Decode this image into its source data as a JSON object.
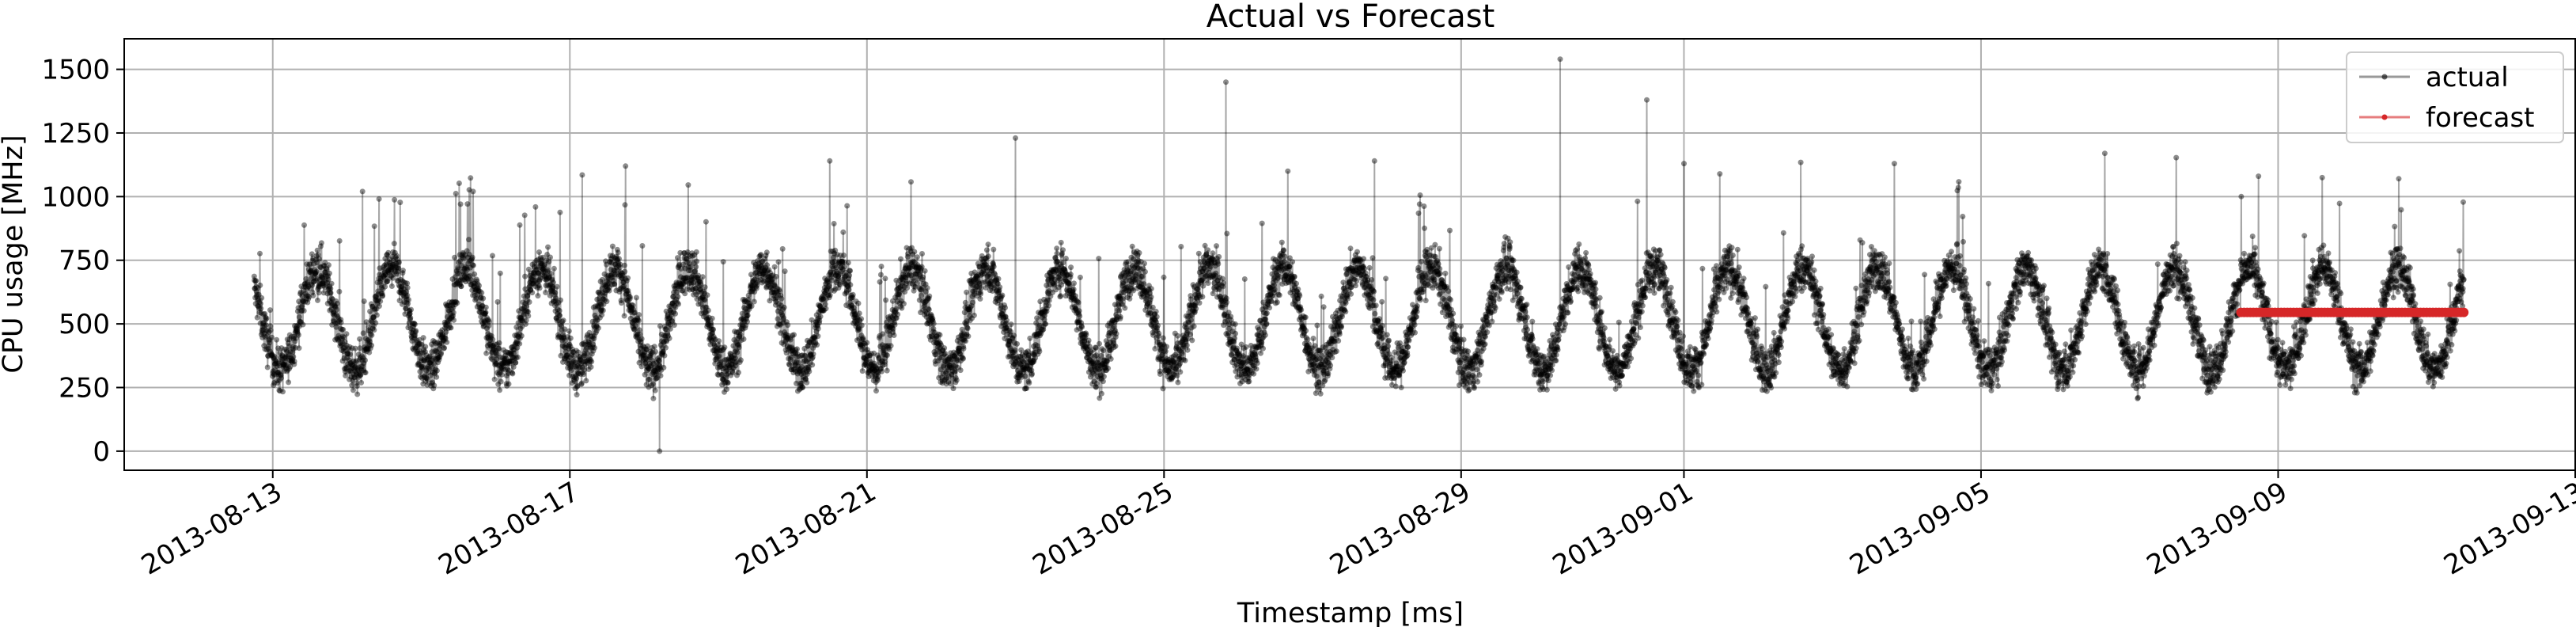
{
  "chart_data": {
    "type": "line",
    "title": "Actual vs Forecast",
    "xlabel": "Timestamp [ms]",
    "ylabel": "CPU usage [MHz]",
    "x_type": "date",
    "xlim": [
      "2013-08-11",
      "2013-09-13"
    ],
    "ylim": [
      -75,
      1620
    ],
    "x_ticks": [
      "2013-08-13",
      "2013-08-17",
      "2013-08-21",
      "2013-08-25",
      "2013-08-29",
      "2013-09-01",
      "2013-09-05",
      "2013-09-09",
      "2013-09-13"
    ],
    "y_ticks": [
      0,
      250,
      500,
      750,
      1000,
      1250,
      1500
    ],
    "grid": true,
    "legend": {
      "placement": "top-right",
      "entries": [
        "actual",
        "forecast"
      ]
    },
    "series": [
      {
        "name": "actual",
        "color": "#000000",
        "x_start": "2013-08-12 18:00",
        "x_end": "2013-09-11 12:00",
        "sample_interval_minutes": 5,
        "baseline": 520,
        "daily_amplitude": 200,
        "noise": 55,
        "approx_peaks": [
          {
            "x": "2013-08-14 05:00",
            "y": 1020
          },
          {
            "x": "2013-08-17 04:00",
            "y": 1085
          },
          {
            "x": "2013-08-17 18:00",
            "y": 1120
          },
          {
            "x": "2013-08-18 05:00",
            "y": 0
          },
          {
            "x": "2013-08-20 12:00",
            "y": 1140
          },
          {
            "x": "2013-08-23 00:00",
            "y": 1230
          },
          {
            "x": "2013-08-25 20:00",
            "y": 1450
          },
          {
            "x": "2013-08-26 16:00",
            "y": 1100
          },
          {
            "x": "2013-08-27 20:00",
            "y": 1140
          },
          {
            "x": "2013-08-30 08:00",
            "y": 1540
          },
          {
            "x": "2013-08-31 12:00",
            "y": 1380
          },
          {
            "x": "2013-09-01 00:00",
            "y": 1130
          },
          {
            "x": "2013-09-03 20:00",
            "y": 1130
          },
          {
            "x": "2013-09-06 16:00",
            "y": 1170
          },
          {
            "x": "2013-09-10 15:00",
            "y": 1070
          }
        ]
      },
      {
        "name": "forecast",
        "color": "#d62728",
        "x_start": "2013-09-08 12:00",
        "x_end": "2013-09-11 12:00",
        "sample_interval_hours": 1,
        "value": 545
      }
    ]
  }
}
